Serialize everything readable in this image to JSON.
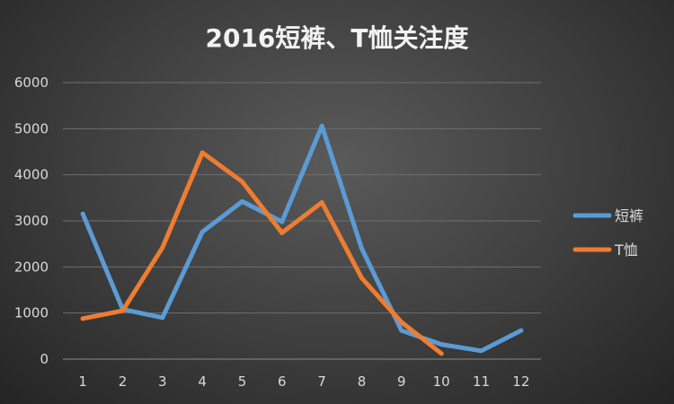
{
  "chart_data": {
    "type": "line",
    "title": "2016短裤、T恤关注度",
    "xlabel": "",
    "ylabel": "",
    "categories": [
      "1",
      "2",
      "3",
      "4",
      "5",
      "6",
      "7",
      "8",
      "9",
      "10",
      "11",
      "12"
    ],
    "yticks": [
      "0",
      "1000",
      "2000",
      "3000",
      "4000",
      "5000",
      "6000"
    ],
    "ylim": [
      0,
      6000
    ],
    "grid": true,
    "legend_position": "right",
    "series": [
      {
        "name": "短裤",
        "color": "#5b9bd5",
        "values": [
          3150,
          1080,
          900,
          2760,
          3420,
          2980,
          5060,
          2400,
          620,
          320,
          180,
          620
        ]
      },
      {
        "name": "T恤",
        "color": "#ed7d31",
        "values": [
          880,
          1050,
          2420,
          4480,
          3850,
          2740,
          3400,
          1760,
          800,
          120,
          null,
          null
        ]
      }
    ]
  }
}
